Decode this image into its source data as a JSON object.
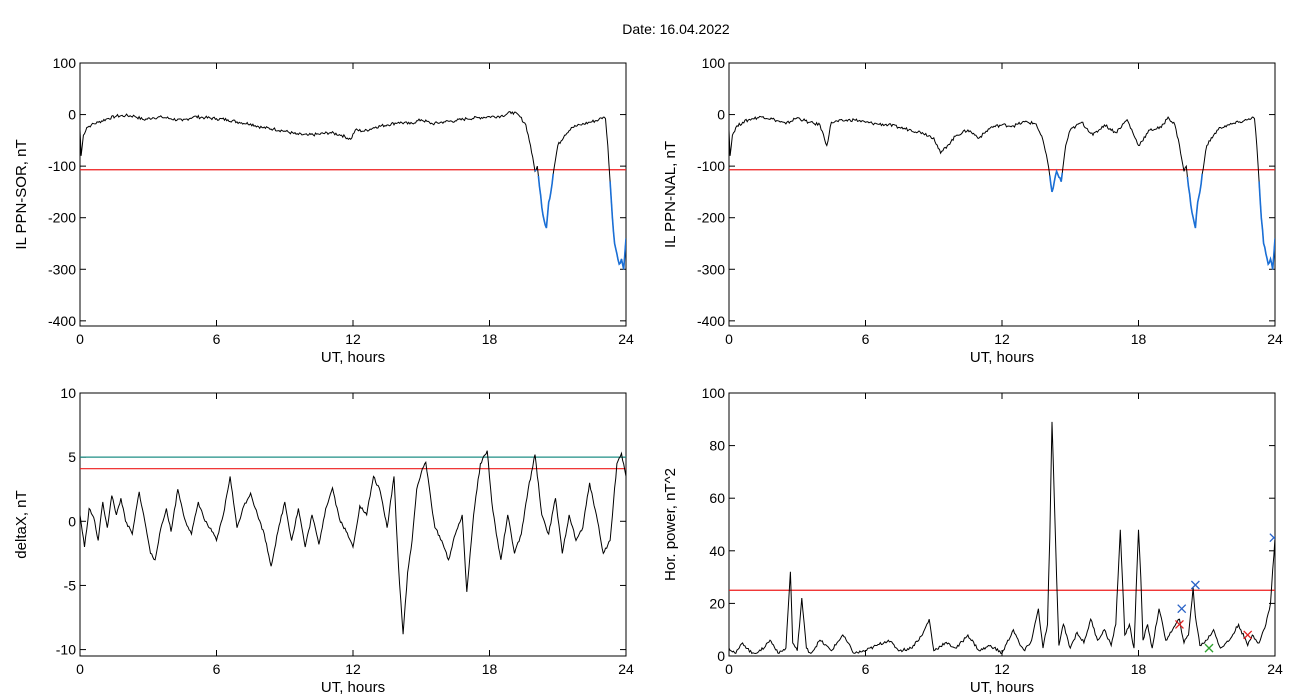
{
  "title": "Date:  16.04.2022",
  "colors": {
    "line": "#000000",
    "threshold": "#ee1c1c",
    "active": "#1a6fd6",
    "upper": "#1f8f86",
    "mark_red": "#e02020",
    "mark_green": "#2ca02c",
    "mark_blue": "#2a63c7"
  },
  "chart_data": [
    {
      "type": "line",
      "ylabel": "IL PPN-SOR, nT",
      "xlabel": "UT, hours",
      "xlim": [
        0,
        24
      ],
      "ylim": [
        -410,
        100
      ],
      "xticks": [
        0,
        6,
        12,
        18,
        24
      ],
      "yticks": [
        100,
        0,
        -100,
        -200,
        -300,
        -400
      ],
      "threshold": -107,
      "highlight_below_threshold": true,
      "series": [
        {
          "x": [
            0,
            0.05,
            0.15,
            0.3,
            0.5,
            0.8,
            1.2,
            1.6,
            2.0,
            2.4,
            2.8,
            3.2,
            3.6,
            4.0,
            4.5,
            5.0,
            5.5,
            6.0,
            6.5,
            7.0,
            7.5,
            8.0,
            8.5,
            9.0,
            9.5,
            10.0,
            10.5,
            11.0,
            11.5,
            11.9,
            12.1,
            12.5,
            13.0,
            13.5,
            14.0,
            14.5,
            15.0,
            15.5,
            16.0,
            16.5,
            17.0,
            17.5,
            18.0,
            18.5,
            19.0,
            19.3,
            19.6,
            19.8,
            20.0,
            20.1,
            20.2,
            20.35,
            20.5,
            20.6,
            20.7,
            20.8,
            21.0,
            21.3,
            21.6,
            22.0,
            22.4,
            22.8,
            23.0,
            23.1,
            23.2,
            23.3,
            23.4,
            23.5,
            23.6,
            23.7,
            23.8,
            23.9,
            24.0
          ],
          "y": [
            -30,
            -80,
            -40,
            -25,
            -20,
            -15,
            -8,
            -3,
            -2,
            -3,
            -10,
            -6,
            -5,
            -8,
            -12,
            -4,
            -6,
            -8,
            -10,
            -15,
            -18,
            -25,
            -28,
            -32,
            -38,
            -40,
            -38,
            -35,
            -40,
            -48,
            -30,
            -32,
            -24,
            -20,
            -15,
            -18,
            -10,
            -18,
            -14,
            -12,
            -8,
            -6,
            -4,
            -3,
            5,
            -2,
            -20,
            -60,
            -110,
            -100,
            -140,
            -195,
            -220,
            -170,
            -150,
            -115,
            -60,
            -40,
            -25,
            -20,
            -15,
            -10,
            -5,
            -8,
            -60,
            -130,
            -200,
            -250,
            -270,
            -290,
            -280,
            -300,
            -240
          ]
        }
      ]
    },
    {
      "type": "line",
      "ylabel": "IL PPN-NAL, nT",
      "xlabel": "UT, hours",
      "xlim": [
        0,
        24
      ],
      "ylim": [
        -410,
        100
      ],
      "xticks": [
        0,
        6,
        12,
        18,
        24
      ],
      "yticks": [
        100,
        0,
        -100,
        -200,
        -300,
        -400
      ],
      "threshold": -107,
      "highlight_below_threshold": true,
      "series": [
        {
          "x": [
            0,
            0.05,
            0.15,
            0.3,
            0.6,
            1.0,
            1.5,
            2.0,
            2.5,
            3.0,
            3.5,
            4.0,
            4.3,
            4.5,
            5.0,
            5.5,
            6.0,
            6.5,
            7.0,
            7.5,
            8.0,
            8.5,
            9.0,
            9.3,
            9.6,
            10.0,
            10.5,
            11.0,
            11.5,
            12.0,
            12.5,
            13.0,
            13.5,
            13.8,
            14.0,
            14.2,
            14.4,
            14.6,
            14.8,
            15.0,
            15.5,
            16.0,
            16.5,
            17.0,
            17.5,
            18.0,
            18.5,
            19.0,
            19.3,
            19.6,
            19.8,
            20.0,
            20.1,
            20.2,
            20.35,
            20.5,
            20.6,
            20.7,
            20.8,
            21.0,
            21.3,
            21.6,
            22.0,
            22.4,
            22.8,
            23.0,
            23.1,
            23.2,
            23.3,
            23.4,
            23.5,
            23.6,
            23.7,
            23.8,
            23.9,
            24.0
          ],
          "y": [
            -30,
            -80,
            -40,
            -25,
            -15,
            -8,
            -4,
            -10,
            -18,
            -6,
            -15,
            -20,
            -60,
            -15,
            -12,
            -10,
            -15,
            -18,
            -20,
            -25,
            -30,
            -35,
            -45,
            -75,
            -60,
            -40,
            -30,
            -45,
            -25,
            -20,
            -22,
            -14,
            -18,
            -50,
            -90,
            -150,
            -110,
            -130,
            -60,
            -30,
            -15,
            -40,
            -20,
            -35,
            -10,
            -60,
            -30,
            -25,
            -5,
            -20,
            -60,
            -110,
            -100,
            -140,
            -190,
            -220,
            -170,
            -150,
            -115,
            -60,
            -40,
            -25,
            -20,
            -15,
            -10,
            -5,
            -8,
            -60,
            -130,
            -200,
            -250,
            -270,
            -290,
            -280,
            -300,
            -240
          ]
        }
      ]
    },
    {
      "type": "line",
      "ylabel": "deltaX, nT",
      "xlabel": "UT, hours",
      "xlim": [
        0,
        24
      ],
      "ylim": [
        -10.5,
        10
      ],
      "xticks": [
        0,
        6,
        12,
        18,
        24
      ],
      "yticks": [
        10,
        5,
        0,
        -5,
        -10
      ],
      "threshold": 4.1,
      "upper_threshold": 5.0,
      "series": [
        {
          "x": [
            0,
            0.2,
            0.4,
            0.6,
            0.8,
            1.0,
            1.2,
            1.4,
            1.6,
            1.8,
            2.0,
            2.3,
            2.6,
            2.9,
            3.1,
            3.3,
            3.5,
            3.8,
            4.0,
            4.3,
            4.6,
            4.9,
            5.2,
            5.5,
            5.8,
            6.0,
            6.3,
            6.6,
            6.9,
            7.2,
            7.5,
            7.8,
            8.1,
            8.4,
            8.7,
            9.0,
            9.3,
            9.6,
            9.9,
            10.2,
            10.5,
            10.8,
            11.1,
            11.4,
            11.7,
            12.0,
            12.3,
            12.6,
            12.9,
            13.2,
            13.5,
            13.8,
            14.0,
            14.2,
            14.4,
            14.6,
            14.8,
            15.0,
            15.2,
            15.4,
            15.6,
            15.9,
            16.2,
            16.5,
            16.8,
            17.0,
            17.3,
            17.6,
            17.9,
            18.1,
            18.3,
            18.5,
            18.8,
            19.1,
            19.4,
            19.7,
            20.0,
            20.3,
            20.6,
            20.9,
            21.2,
            21.5,
            21.8,
            22.1,
            22.4,
            22.7,
            23.0,
            23.3,
            23.6,
            23.8,
            24.0
          ],
          "y": [
            0.5,
            -2,
            1,
            0.3,
            -1.5,
            1.5,
            -0.5,
            2,
            0.5,
            1.8,
            0,
            -1,
            2.3,
            -0.5,
            -2.5,
            -3,
            -1,
            1,
            -0.8,
            2.5,
            0.2,
            -1,
            1.5,
            0,
            -0.8,
            -1.5,
            0.5,
            3.5,
            -0.5,
            1.2,
            2.2,
            0.5,
            -1,
            -3.5,
            -0.8,
            1.5,
            -1.5,
            1,
            -2,
            0.5,
            -1.8,
            1,
            2.6,
            0.2,
            -0.8,
            -2,
            1.2,
            0.5,
            3.5,
            2.3,
            -0.5,
            3.5,
            -3.5,
            -8.8,
            -4,
            -1.5,
            2.5,
            3.8,
            4.6,
            2,
            -0.5,
            -1.5,
            -3,
            -1,
            0.5,
            -5.5,
            0.5,
            4.5,
            5.5,
            1.5,
            -1,
            -3,
            0.5,
            -2.5,
            -1,
            2.5,
            5.2,
            0.5,
            -1,
            1.8,
            -2.5,
            0.5,
            -1.5,
            -0.5,
            3,
            0.5,
            -2.5,
            -1.5,
            4.5,
            5.3,
            3.5
          ]
        }
      ]
    },
    {
      "type": "line",
      "ylabel": "Hor. power, nT^2",
      "xlabel": "UT, hours",
      "xlim": [
        0,
        24
      ],
      "ylim": [
        0,
        100
      ],
      "xticks": [
        0,
        6,
        12,
        18,
        24
      ],
      "yticks": [
        100,
        80,
        60,
        40,
        20,
        0
      ],
      "threshold": 25,
      "series": [
        {
          "x": [
            0,
            0.3,
            0.6,
            1.0,
            1.4,
            1.8,
            2.2,
            2.5,
            2.7,
            2.8,
            3.0,
            3.2,
            3.4,
            3.6,
            4.0,
            4.5,
            5.0,
            5.5,
            6.0,
            6.5,
            7.0,
            7.5,
            8.0,
            8.5,
            8.8,
            9.0,
            9.5,
            10.0,
            10.5,
            11.0,
            11.5,
            12.0,
            12.5,
            12.8,
            13.0,
            13.3,
            13.6,
            13.8,
            14.0,
            14.1,
            14.2,
            14.3,
            14.4,
            14.5,
            14.7,
            15.0,
            15.3,
            15.6,
            15.9,
            16.2,
            16.5,
            16.8,
            17.0,
            17.2,
            17.4,
            17.6,
            17.8,
            18.0,
            18.1,
            18.2,
            18.4,
            18.6,
            18.9,
            19.2,
            19.5,
            19.8,
            20.0,
            20.2,
            20.4,
            20.5,
            20.7,
            21.0,
            21.3,
            21.6,
            22.0,
            22.4,
            22.8,
            23.0,
            23.3,
            23.6,
            23.8,
            24.0
          ],
          "y": [
            3,
            1,
            5,
            1,
            2,
            6,
            1,
            3,
            32,
            5,
            2,
            22,
            3,
            1,
            6,
            2,
            8,
            1,
            2,
            4,
            6,
            2,
            3,
            8,
            14,
            2,
            5,
            3,
            8,
            2,
            4,
            1,
            10,
            4,
            2,
            6,
            18,
            3,
            12,
            45,
            89,
            60,
            30,
            4,
            12,
            3,
            9,
            5,
            14,
            6,
            10,
            4,
            12,
            48,
            8,
            12,
            3,
            48,
            30,
            6,
            12,
            3,
            18,
            6,
            10,
            14,
            5,
            8,
            26,
            15,
            4,
            6,
            10,
            3,
            6,
            12,
            4,
            8,
            5,
            12,
            20,
            45
          ]
        }
      ],
      "markers": [
        {
          "x": 19.8,
          "y": 12,
          "color": "red"
        },
        {
          "x": 19.9,
          "y": 18,
          "color": "blue"
        },
        {
          "x": 20.5,
          "y": 27,
          "color": "blue"
        },
        {
          "x": 21.1,
          "y": 3,
          "color": "green"
        },
        {
          "x": 22.8,
          "y": 8,
          "color": "red"
        },
        {
          "x": 23.95,
          "y": 45,
          "color": "blue"
        }
      ]
    }
  ]
}
